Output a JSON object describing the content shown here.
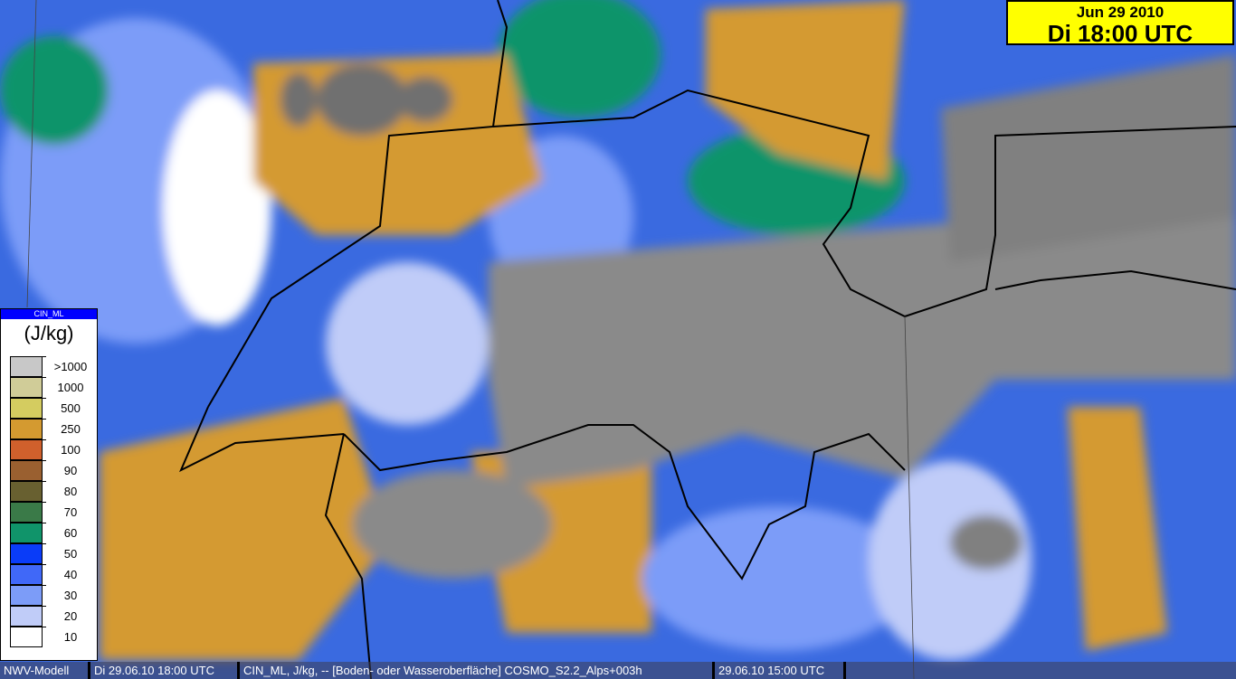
{
  "title": {
    "date": "Jun 29 2010",
    "time": "Di 18:00 UTC"
  },
  "legend": {
    "parameter": "CIN_ML",
    "unit": "(J/kg)",
    "items": [
      {
        "label": ">1000",
        "color": "#c8c8c8"
      },
      {
        "label": "1000",
        "color": "#d0cc98"
      },
      {
        "label": "500",
        "color": "#d4cc60"
      },
      {
        "label": "250",
        "color": "#d49a30"
      },
      {
        "label": "100",
        "color": "#d0602c"
      },
      {
        "label": "90",
        "color": "#9a6030"
      },
      {
        "label": "80",
        "color": "#686030"
      },
      {
        "label": "70",
        "color": "#3a7a48"
      },
      {
        "label": "60",
        "color": "#10946a"
      },
      {
        "label": "50",
        "color": "#0a3cf8"
      },
      {
        "label": "40",
        "color": "#4068f8"
      },
      {
        "label": "30",
        "color": "#7c9cf8"
      },
      {
        "label": "20",
        "color": "#c0ccf8"
      },
      {
        "label": "10",
        "color": "#ffffff"
      }
    ]
  },
  "status_bar": {
    "model": "NWV-Modell",
    "valid_time": "Di 29.06.10 18:00 UTC",
    "field": "CIN_ML, J/kg, -- [Boden- oder Wasseroberfläche] COSMO_S2.2_Alps+003h",
    "run_time": "29.06.10 15:00 UTC"
  }
}
